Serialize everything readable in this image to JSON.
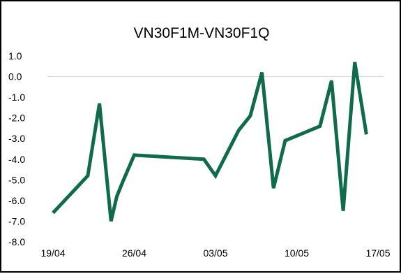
{
  "chart_data": {
    "type": "line",
    "title": "VN30F1M-VN30F1Q",
    "xlabel": "",
    "ylabel": "",
    "ylim": [
      -8.0,
      1.0
    ],
    "yticks": [
      "1.0",
      "0.0",
      "-1.0",
      "-2.0",
      "-3.0",
      "-4.0",
      "-5.0",
      "-6.0",
      "-7.0",
      "-8.0"
    ],
    "ytick_values": [
      1,
      0,
      -1,
      -2,
      -3,
      -4,
      -5,
      -6,
      -7,
      -8
    ],
    "xticks": [
      "19/04",
      "26/04",
      "03/05",
      "10/05",
      "17/05"
    ],
    "xlim": [
      "2023-04-19",
      "2023-05-17"
    ],
    "grid": false,
    "legend": "none",
    "series": [
      {
        "color": "#0f6b4c",
        "x": [
          "2023-04-19",
          "2023-04-22",
          "2023-04-23",
          "2023-04-24",
          "2023-04-24T12:00",
          "2023-04-25",
          "2023-04-26",
          "2023-05-02",
          "2023-05-03",
          "2023-05-05",
          "2023-05-06",
          "2023-05-07",
          "2023-05-08",
          "2023-05-09",
          "2023-05-12",
          "2023-05-13",
          "2023-05-14",
          "2023-05-15",
          "2023-05-16"
        ],
        "values": [
          -6.6,
          -4.8,
          -1.3,
          -7.0,
          -5.8,
          -5.1,
          -3.8,
          -4.0,
          -4.8,
          -2.6,
          -1.9,
          0.2,
          -5.4,
          -3.1,
          -2.4,
          -0.2,
          -6.5,
          0.7,
          -2.8
        ]
      }
    ]
  }
}
